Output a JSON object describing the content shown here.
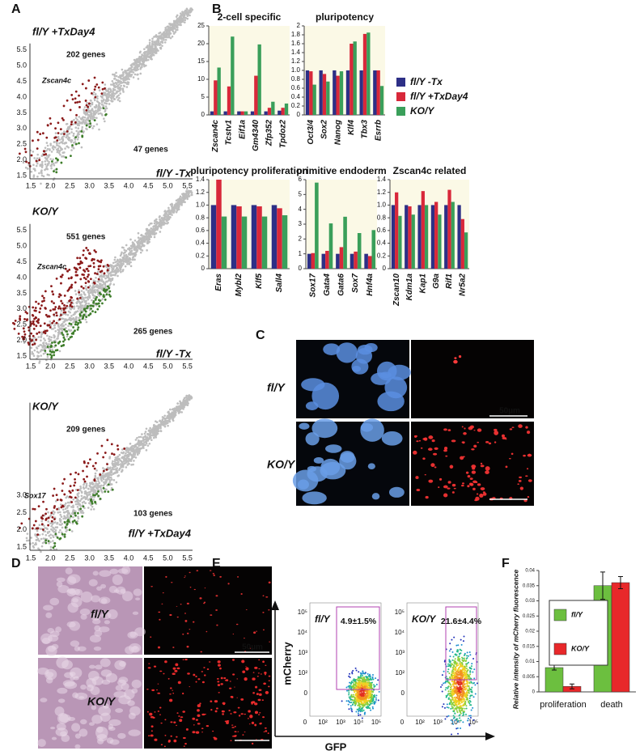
{
  "panel_labels": [
    "A",
    "B",
    "C",
    "D",
    "E",
    "F"
  ],
  "panel_a": {
    "plots": [
      {
        "top_label": "fl/Y +TxDay4",
        "up_count": "202 genes",
        "gene": "Zscan4c",
        "down_count": "47 genes",
        "bottom_label": "fl/Y -Tx",
        "xticks": [
          "1.5",
          "2.0",
          "2.5",
          "3.0",
          "3.5",
          "4.0",
          "4.5",
          "5.0",
          "5.5"
        ],
        "yticks": [
          "1.5",
          "2.0",
          "2.5",
          "3.0",
          "3.5",
          "4.0",
          "4.5",
          "5.0",
          "5.5"
        ]
      },
      {
        "top_label": "KO/Y",
        "up_count": "551 genes",
        "gene": "Zscan4c",
        "down_count": "265 genes",
        "bottom_label": "fl/Y -Tx",
        "xticks": [
          "1.5",
          "2.0",
          "2.5",
          "3.0",
          "3.5",
          "4.0",
          "4.5",
          "5.0",
          "5.5"
        ],
        "yticks": [
          "1.5",
          "2.0",
          "2.5",
          "3.0",
          "3.5",
          "4.0",
          "4.5",
          "5.0",
          "5.5"
        ]
      },
      {
        "top_label": "KO/Y",
        "up_count": "209 genes",
        "gene": "Sox17",
        "down_count": "103 genes",
        "bottom_label": "fl/Y +TxDay4",
        "xticks": [
          "1.5",
          "2.0",
          "2.5",
          "3.0",
          "3.5",
          "4.0",
          "4.5",
          "5.0",
          "5.5"
        ],
        "yticks": [
          "1.5",
          "2.0",
          "2.5",
          "3.0"
        ]
      }
    ]
  },
  "panel_c": {
    "rows": [
      "fl/Y",
      "KO/Y"
    ],
    "scale": "50µm"
  },
  "panel_d": {
    "rows": [
      "fl/Y",
      "KO/Y"
    ],
    "scale": "50µm"
  },
  "panel_e": {
    "y_axis": "mCherry",
    "x_axis": "GFP",
    "yticks": [
      "10⁵",
      "10⁴",
      "10³",
      "10²",
      "0"
    ],
    "xticks": [
      "0",
      "10²",
      "10³",
      "10⁴",
      "10⁵"
    ],
    "plots": [
      {
        "label": "fl/Y",
        "gate": "4.9±1.5%"
      },
      {
        "label": "KO/Y",
        "gate": "21.6±4.4%"
      }
    ]
  },
  "chart_data": [
    {
      "type": "bar",
      "title": "2-cell specific",
      "categories": [
        "Zscan4c",
        "Tcstv1",
        "Eif1a",
        "Gm4340",
        "Zfp352",
        "Tpdoz2"
      ],
      "series": [
        {
          "color": "#2d2f86",
          "values": [
            1,
            1,
            1,
            1,
            1,
            1.2
          ]
        },
        {
          "color": "#d8283a",
          "values": [
            9.7,
            8,
            1,
            11,
            2,
            2
          ]
        },
        {
          "color": "#3a9f5a",
          "values": [
            13.3,
            22,
            1,
            19.8,
            3.7,
            3.2
          ]
        }
      ],
      "ylim": [
        0,
        25
      ],
      "yticks": [
        0,
        5,
        10,
        15,
        20,
        25
      ]
    },
    {
      "type": "bar",
      "title": "pluripotency",
      "categories": [
        "Oct3/4",
        "Sox2",
        "Nanog",
        "Klf4",
        "Tbx3",
        "Esrrb"
      ],
      "series": [
        {
          "name": "fl/Y -Tx",
          "color": "#2d2f86",
          "values": [
            1,
            1,
            1,
            1,
            1,
            1
          ]
        },
        {
          "name": "fl/Y +TxDay4",
          "color": "#d8283a",
          "values": [
            0.98,
            0.92,
            0.88,
            1.6,
            1.82,
            1
          ]
        },
        {
          "name": "KO/Y",
          "color": "#3a9f5a",
          "values": [
            0.68,
            0.75,
            0.98,
            1.65,
            1.85,
            0.65
          ]
        }
      ],
      "ylim": [
        0,
        2
      ],
      "yticks": [
        0,
        0.2,
        0.4,
        0.6,
        0.8,
        {
          "value": 1,
          "label": "1.0"
        },
        1.2,
        1.4,
        1.6,
        1.8,
        2
      ]
    },
    {
      "type": "bar",
      "title": "pluripotency proliferation",
      "categories": [
        "Eras",
        "Mybl2",
        "Klf5",
        "Sall4"
      ],
      "series": [
        {
          "color": "#2d2f86",
          "values": [
            1,
            1,
            1,
            1
          ]
        },
        {
          "color": "#d8283a",
          "values": [
            1.4,
            0.98,
            0.98,
            0.95
          ]
        },
        {
          "color": "#3a9f5a",
          "values": [
            0.82,
            0.82,
            0.82,
            0.84
          ]
        }
      ],
      "ylim": [
        0,
        1.4
      ],
      "yticks": [
        0,
        0.2,
        0.4,
        0.6,
        0.8,
        {
          "value": 1,
          "label": "1.0"
        },
        1.2,
        1.4
      ]
    },
    {
      "type": "bar",
      "title": "primitive endoderm",
      "categories": [
        "Sox17",
        "Gata4",
        "Gata6",
        "Sox7",
        "Hnf4a"
      ],
      "series": [
        {
          "color": "#2d2f86",
          "values": [
            1,
            1,
            1,
            1,
            1
          ]
        },
        {
          "color": "#d8283a",
          "values": [
            1.05,
            1.2,
            1.45,
            1.15,
            0.85
          ]
        },
        {
          "color": "#3a9f5a",
          "values": [
            5.8,
            3.05,
            3.5,
            2.4,
            2.6
          ]
        }
      ],
      "ylim": [
        0,
        6
      ],
      "yticks": [
        0,
        1,
        2,
        3,
        4,
        5,
        6
      ]
    },
    {
      "type": "bar",
      "title": "Zscan4c related",
      "categories": [
        "Zscan10",
        "Kdm1a",
        "Kap1",
        "G9a",
        "Rif1",
        "Nr5a2"
      ],
      "series": [
        {
          "color": "#2d2f86",
          "values": [
            1,
            1,
            1,
            1,
            1,
            1
          ]
        },
        {
          "color": "#d8283a",
          "values": [
            1.2,
            0.98,
            1.22,
            1.05,
            1.24,
            0.78
          ]
        },
        {
          "color": "#3a9f5a",
          "values": [
            0.83,
            0.85,
            1,
            0.85,
            1.05,
            0.57
          ]
        }
      ],
      "ylim": [
        0,
        1.4
      ],
      "yticks": [
        0,
        0.2,
        0.4,
        0.6,
        0.8,
        {
          "value": 1,
          "label": "1.0"
        },
        1.2,
        1.4
      ]
    },
    {
      "type": "errorbar",
      "ylabel": "Relative intensity of mCherry fluorescence",
      "categories": [
        "proliferation",
        "death"
      ],
      "series": [
        {
          "name": "fl/Y",
          "color": "#6cbf3f",
          "values": [
            0.008,
            0.035
          ],
          "errors": [
            0.0008,
            0.0045
          ]
        },
        {
          "name": "KO/Y",
          "color": "#e8282a",
          "values": [
            0.0018,
            0.036
          ],
          "errors": [
            0.0008,
            0.002
          ]
        }
      ],
      "ylim": [
        0,
        0.04
      ],
      "yticks": [
        0,
        0.005,
        0.01,
        0.015,
        0.02,
        0.025,
        0.03,
        0.035,
        0.04
      ]
    }
  ]
}
